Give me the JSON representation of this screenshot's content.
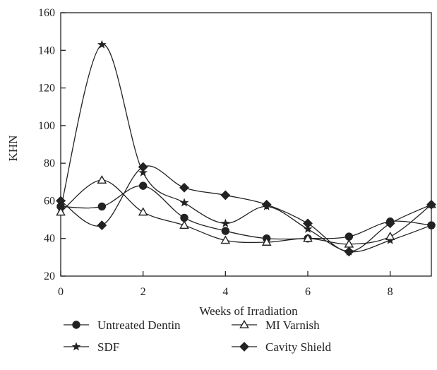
{
  "chart_data": {
    "type": "line",
    "xlabel": "Weeks of Irradiation",
    "ylabel": "KHN",
    "xlim": [
      0,
      9
    ],
    "ylim": [
      20,
      160
    ],
    "xticks": [
      "0",
      "2",
      "4",
      "6",
      "8"
    ],
    "yticks": [
      "20",
      "40",
      "60",
      "80",
      "100",
      "120",
      "140",
      "160"
    ],
    "grid": false,
    "legend_position": "bottom",
    "x": [
      0,
      1,
      2,
      3,
      4,
      5,
      6,
      7,
      8,
      9
    ],
    "series": [
      {
        "name": "Untreated Dentin",
        "marker": "circle",
        "values": [
          57,
          57,
          68,
          51,
          44,
          40,
          40,
          41,
          49,
          47
        ]
      },
      {
        "name": "SDF",
        "marker": "star",
        "values": [
          56,
          143,
          75,
          59,
          48,
          57,
          45,
          33,
          39,
          47
        ]
      },
      {
        "name": "MI Varnish",
        "marker": "triangle-open",
        "values": [
          54,
          71,
          54,
          47,
          39,
          38,
          40,
          37,
          41,
          58
        ]
      },
      {
        "name": "Cavity Shield",
        "marker": "diamond",
        "values": [
          60,
          47,
          78,
          67,
          63,
          58,
          48,
          33,
          48,
          58
        ]
      }
    ],
    "line_color": "#222222"
  }
}
